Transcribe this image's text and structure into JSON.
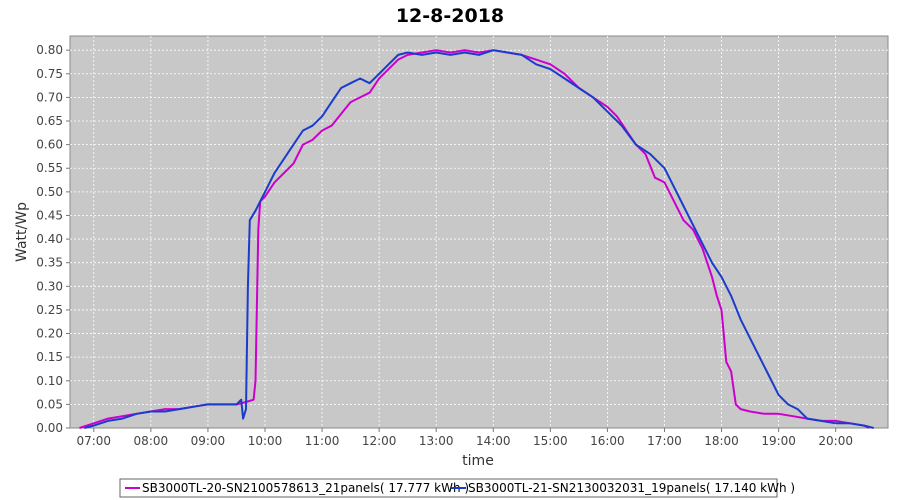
{
  "chart_data": {
    "type": "line",
    "title": "12-8-2018",
    "xlabel": "time",
    "ylabel": "Watt/Wp",
    "xlim": [
      "06:35",
      "20:55"
    ],
    "ylim": [
      0,
      0.83
    ],
    "x_ticks": [
      "07:00",
      "08:00",
      "09:00",
      "10:00",
      "11:00",
      "12:00",
      "13:00",
      "14:00",
      "15:00",
      "16:00",
      "17:00",
      "18:00",
      "19:00",
      "20:00"
    ],
    "y_ticks": [
      "0.00",
      "0.05",
      "0.10",
      "0.15",
      "0.20",
      "0.25",
      "0.30",
      "0.35",
      "0.40",
      "0.45",
      "0.50",
      "0.55",
      "0.60",
      "0.65",
      "0.70",
      "0.75",
      "0.80"
    ],
    "grid": true,
    "legend_position": "bottom",
    "series": [
      {
        "name": "SB3000TL-20-SN2100578613_21panels( 17.777 kWh )",
        "color": "#cc00cc",
        "points": [
          [
            "06:45",
            0.0
          ],
          [
            "07:00",
            0.01
          ],
          [
            "07:15",
            0.02
          ],
          [
            "07:30",
            0.025
          ],
          [
            "07:45",
            0.03
          ],
          [
            "08:00",
            0.035
          ],
          [
            "08:15",
            0.04
          ],
          [
            "08:30",
            0.04
          ],
          [
            "08:45",
            0.045
          ],
          [
            "09:00",
            0.05
          ],
          [
            "09:15",
            0.05
          ],
          [
            "09:30",
            0.05
          ],
          [
            "09:40",
            0.055
          ],
          [
            "09:48",
            0.06
          ],
          [
            "09:50",
            0.1
          ],
          [
            "09:53",
            0.42
          ],
          [
            "09:55",
            0.48
          ],
          [
            "10:00",
            0.49
          ],
          [
            "10:10",
            0.52
          ],
          [
            "10:20",
            0.54
          ],
          [
            "10:30",
            0.56
          ],
          [
            "10:40",
            0.6
          ],
          [
            "10:50",
            0.61
          ],
          [
            "11:00",
            0.63
          ],
          [
            "11:10",
            0.64
          ],
          [
            "11:20",
            0.665
          ],
          [
            "11:30",
            0.69
          ],
          [
            "11:40",
            0.7
          ],
          [
            "11:50",
            0.71
          ],
          [
            "12:00",
            0.74
          ],
          [
            "12:10",
            0.76
          ],
          [
            "12:20",
            0.78
          ],
          [
            "12:30",
            0.79
          ],
          [
            "12:45",
            0.795
          ],
          [
            "13:00",
            0.8
          ],
          [
            "13:15",
            0.795
          ],
          [
            "13:30",
            0.8
          ],
          [
            "13:45",
            0.795
          ],
          [
            "14:00",
            0.8
          ],
          [
            "14:15",
            0.795
          ],
          [
            "14:30",
            0.79
          ],
          [
            "14:45",
            0.78
          ],
          [
            "15:00",
            0.77
          ],
          [
            "15:15",
            0.75
          ],
          [
            "15:30",
            0.72
          ],
          [
            "15:45",
            0.7
          ],
          [
            "16:00",
            0.68
          ],
          [
            "16:10",
            0.66
          ],
          [
            "16:20",
            0.63
          ],
          [
            "16:30",
            0.6
          ],
          [
            "16:40",
            0.58
          ],
          [
            "16:50",
            0.53
          ],
          [
            "17:00",
            0.52
          ],
          [
            "17:10",
            0.48
          ],
          [
            "17:20",
            0.44
          ],
          [
            "17:30",
            0.42
          ],
          [
            "17:40",
            0.38
          ],
          [
            "17:50",
            0.32
          ],
          [
            "17:55",
            0.28
          ],
          [
            "18:00",
            0.25
          ],
          [
            "18:05",
            0.14
          ],
          [
            "18:10",
            0.12
          ],
          [
            "18:15",
            0.05
          ],
          [
            "18:20",
            0.04
          ],
          [
            "18:30",
            0.035
          ],
          [
            "18:45",
            0.03
          ],
          [
            "19:00",
            0.03
          ],
          [
            "19:15",
            0.025
          ],
          [
            "19:30",
            0.02
          ],
          [
            "19:45",
            0.015
          ],
          [
            "20:00",
            0.015
          ],
          [
            "20:15",
            0.01
          ],
          [
            "20:30",
            0.005
          ],
          [
            "20:35",
            0.0
          ]
        ]
      },
      {
        "name": "SB3000TL-21-SN2130032031_19panels( 17.140 kWh )",
        "color": "#1a3ccc",
        "points": [
          [
            "06:50",
            0.0
          ],
          [
            "07:00",
            0.005
          ],
          [
            "07:15",
            0.015
          ],
          [
            "07:30",
            0.02
          ],
          [
            "07:45",
            0.03
          ],
          [
            "08:00",
            0.035
          ],
          [
            "08:15",
            0.035
          ],
          [
            "08:30",
            0.04
          ],
          [
            "08:45",
            0.045
          ],
          [
            "09:00",
            0.05
          ],
          [
            "09:15",
            0.05
          ],
          [
            "09:30",
            0.05
          ],
          [
            "09:35",
            0.06
          ],
          [
            "09:37",
            0.02
          ],
          [
            "09:40",
            0.04
          ],
          [
            "09:42",
            0.3
          ],
          [
            "09:44",
            0.44
          ],
          [
            "09:50",
            0.46
          ],
          [
            "10:00",
            0.5
          ],
          [
            "10:10",
            0.54
          ],
          [
            "10:20",
            0.57
          ],
          [
            "10:30",
            0.6
          ],
          [
            "10:40",
            0.63
          ],
          [
            "10:50",
            0.64
          ],
          [
            "11:00",
            0.66
          ],
          [
            "11:10",
            0.69
          ],
          [
            "11:20",
            0.72
          ],
          [
            "11:30",
            0.73
          ],
          [
            "11:40",
            0.74
          ],
          [
            "11:50",
            0.73
          ],
          [
            "12:00",
            0.75
          ],
          [
            "12:10",
            0.77
          ],
          [
            "12:20",
            0.79
          ],
          [
            "12:30",
            0.795
          ],
          [
            "12:45",
            0.79
          ],
          [
            "13:00",
            0.795
          ],
          [
            "13:15",
            0.79
          ],
          [
            "13:30",
            0.795
          ],
          [
            "13:45",
            0.79
          ],
          [
            "14:00",
            0.8
          ],
          [
            "14:15",
            0.795
          ],
          [
            "14:30",
            0.79
          ],
          [
            "14:45",
            0.77
          ],
          [
            "15:00",
            0.76
          ],
          [
            "15:15",
            0.74
          ],
          [
            "15:30",
            0.72
          ],
          [
            "15:45",
            0.7
          ],
          [
            "16:00",
            0.67
          ],
          [
            "16:15",
            0.64
          ],
          [
            "16:30",
            0.6
          ],
          [
            "16:45",
            0.58
          ],
          [
            "17:00",
            0.55
          ],
          [
            "17:10",
            0.51
          ],
          [
            "17:20",
            0.47
          ],
          [
            "17:30",
            0.43
          ],
          [
            "17:40",
            0.39
          ],
          [
            "17:50",
            0.35
          ],
          [
            "18:00",
            0.32
          ],
          [
            "18:10",
            0.28
          ],
          [
            "18:20",
            0.23
          ],
          [
            "18:30",
            0.19
          ],
          [
            "18:40",
            0.15
          ],
          [
            "18:50",
            0.11
          ],
          [
            "19:00",
            0.07
          ],
          [
            "19:10",
            0.05
          ],
          [
            "19:20",
            0.04
          ],
          [
            "19:30",
            0.02
          ],
          [
            "19:45",
            0.015
          ],
          [
            "20:00",
            0.01
          ],
          [
            "20:15",
            0.01
          ],
          [
            "20:30",
            0.005
          ],
          [
            "20:40",
            0.0
          ]
        ]
      }
    ]
  }
}
